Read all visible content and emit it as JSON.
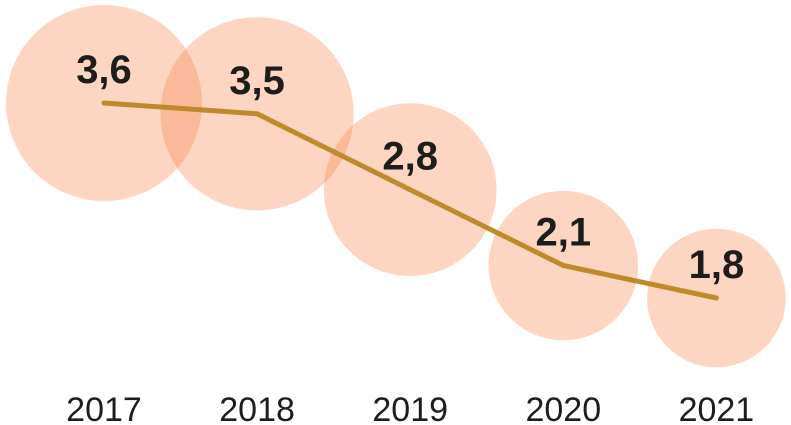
{
  "chart_data": {
    "type": "bubble-line",
    "categories": [
      "2017",
      "2018",
      "2019",
      "2020",
      "2021"
    ],
    "values": [
      3.6,
      3.5,
      2.8,
      2.1,
      1.8
    ],
    "value_labels": [
      "3,6",
      "3,5",
      "2,8",
      "2,1",
      "1,8"
    ],
    "title": "",
    "xlabel": "",
    "ylabel": "",
    "decimal_separator": ",",
    "bubble_area_note": "bubble size proportional to value",
    "grid": false,
    "legend": "none",
    "axes_visible": false,
    "colors": {
      "bubble_fill": "#f68446",
      "bubble_opacity": 0.33,
      "line": "#be8b2c",
      "value_label": "#1d1d1b",
      "axis_label": "#1d1d1b",
      "background": "#ffffff"
    }
  }
}
